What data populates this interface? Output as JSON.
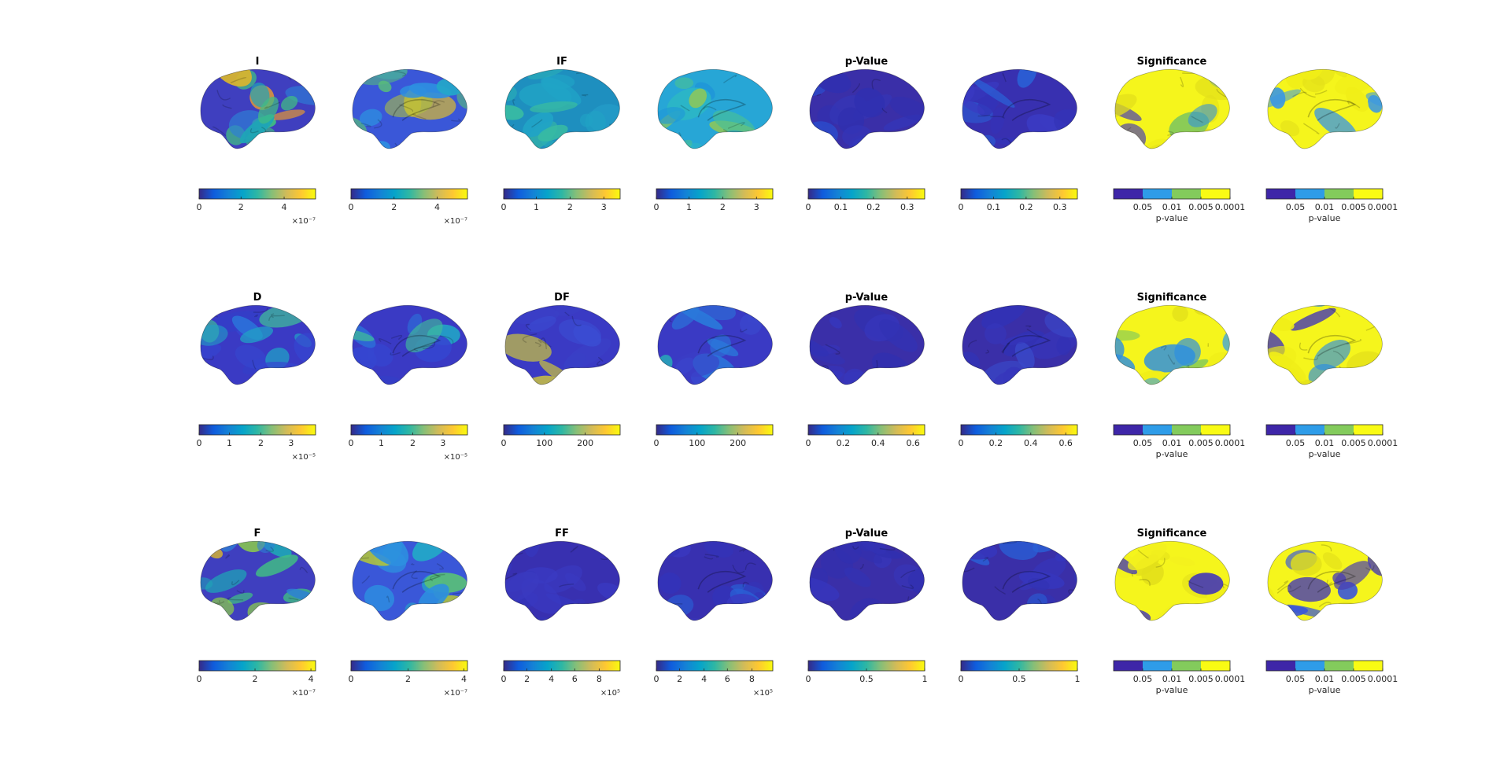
{
  "rows": [
    {
      "titles": [
        "I",
        "IF",
        "p-Value",
        "Significance"
      ],
      "panels": [
        {
          "palette": [
            "#3f3fbf",
            "#2d7fd6",
            "#1ea6b6",
            "#40bd84",
            "#8ccd4a",
            "#d8b52f",
            "#e89a30"
          ],
          "colorbar": {
            "type": "continuous",
            "ticks": [
              {
                "label": "0",
                "frac": 0.0
              },
              {
                "label": "2",
                "frac": 0.36
              },
              {
                "label": "4",
                "frac": 0.73
              }
            ],
            "exponent": "×10⁻⁷"
          }
        },
        {
          "palette": [
            "#3a57d8",
            "#2d8fe0",
            "#23a8c8",
            "#58bd7a",
            "#b0c33c",
            "#d5b936"
          ],
          "colorbar": {
            "type": "continuous",
            "ticks": [
              {
                "label": "0",
                "frac": 0.0
              },
              {
                "label": "2",
                "frac": 0.37
              },
              {
                "label": "4",
                "frac": 0.74
              }
            ],
            "exponent": "×10⁻⁷"
          }
        },
        {
          "palette": [
            "#1e8fbf",
            "#20a4c6",
            "#2ab0b6",
            "#38bba2",
            "#26a0cc"
          ],
          "colorbar": {
            "type": "continuous",
            "ticks": [
              {
                "label": "0",
                "frac": 0.0
              },
              {
                "label": "1",
                "frac": 0.28
              },
              {
                "label": "2",
                "frac": 0.57
              },
              {
                "label": "3",
                "frac": 0.86
              }
            ],
            "exponent": ""
          }
        },
        {
          "palette": [
            "#27a6d6",
            "#2db7c4",
            "#48bf98",
            "#8cc75c",
            "#1f97d8"
          ],
          "colorbar": {
            "type": "continuous",
            "ticks": [
              {
                "label": "0",
                "frac": 0.0
              },
              {
                "label": "1",
                "frac": 0.28
              },
              {
                "label": "2",
                "frac": 0.57
              },
              {
                "label": "3",
                "frac": 0.86
              }
            ],
            "exponent": ""
          }
        },
        {
          "palette": [
            "#3a2fa8",
            "#3030b0",
            "#3b3bc0",
            "#2a4fd0",
            "#3436b8"
          ],
          "colorbar": {
            "type": "continuous",
            "ticks": [
              {
                "label": "0",
                "frac": 0.0
              },
              {
                "label": "0.1",
                "frac": 0.28
              },
              {
                "label": "0.2",
                "frac": 0.56
              },
              {
                "label": "0.3",
                "frac": 0.85
              }
            ],
            "exponent": ""
          }
        },
        {
          "palette": [
            "#3830b0",
            "#3333b8",
            "#3a3ac2",
            "#2a60d6"
          ],
          "colorbar": {
            "type": "continuous",
            "ticks": [
              {
                "label": "0",
                "frac": 0.0
              },
              {
                "label": "0.1",
                "frac": 0.28
              },
              {
                "label": "0.2",
                "frac": 0.56
              },
              {
                "label": "0.3",
                "frac": 0.85
              }
            ],
            "exponent": ""
          }
        },
        {
          "palette": [
            "#f5f51c",
            "#f0ee18",
            "#e3e01a",
            "#2e8fe0",
            "#4a3fb0",
            "#84c95a"
          ],
          "colorbar": {
            "type": "discrete",
            "ticks": [
              {
                "label": "0.05",
                "frac": 0.25
              },
              {
                "label": "0.01",
                "frac": 0.5
              },
              {
                "label": "0.005",
                "frac": 0.75
              },
              {
                "label": "0.0001",
                "frac": 1.0
              }
            ],
            "label": "p-value"
          }
        },
        {
          "palette": [
            "#f5f51c",
            "#f0ee18",
            "#e3e01a",
            "#3a97e4"
          ],
          "colorbar": {
            "type": "discrete",
            "ticks": [
              {
                "label": "0.05",
                "frac": 0.25
              },
              {
                "label": "0.01",
                "frac": 0.5
              },
              {
                "label": "0.005",
                "frac": 0.75
              },
              {
                "label": "0.0001",
                "frac": 1.0
              }
            ],
            "label": "p-value"
          }
        }
      ]
    },
    {
      "titles": [
        "D",
        "DF",
        "p-Value",
        "Significance"
      ],
      "panels": [
        {
          "palette": [
            "#3a3ac4",
            "#3546d0",
            "#2c6fd8",
            "#22a0c6",
            "#3fbb9a",
            "#3340c8"
          ],
          "colorbar": {
            "type": "continuous",
            "ticks": [
              {
                "label": "0",
                "frac": 0.0
              },
              {
                "label": "1",
                "frac": 0.26
              },
              {
                "label": "2",
                "frac": 0.53
              },
              {
                "label": "3",
                "frac": 0.79
              }
            ],
            "exponent": "×10⁻⁵"
          }
        },
        {
          "palette": [
            "#3a3ac4",
            "#3546d0",
            "#2c6fd8",
            "#22a0c6",
            "#3fbb9a",
            "#3340c8"
          ],
          "colorbar": {
            "type": "continuous",
            "ticks": [
              {
                "label": "0",
                "frac": 0.0
              },
              {
                "label": "1",
                "frac": 0.26
              },
              {
                "label": "2",
                "frac": 0.53
              },
              {
                "label": "3",
                "frac": 0.79
              }
            ],
            "exponent": "×10⁻⁵"
          }
        },
        {
          "palette": [
            "#3a3ac4",
            "#3a4cd2",
            "#2a78da",
            "#28a8b8",
            "#c8c040",
            "#3a3fc6"
          ],
          "colorbar": {
            "type": "continuous",
            "ticks": [
              {
                "label": "0",
                "frac": 0.0
              },
              {
                "label": "100",
                "frac": 0.35
              },
              {
                "label": "200",
                "frac": 0.7
              }
            ],
            "exponent": ""
          }
        },
        {
          "palette": [
            "#3a3ac4",
            "#3a4cd2",
            "#2a78da",
            "#28a8b8",
            "#3a3fc6"
          ],
          "colorbar": {
            "type": "continuous",
            "ticks": [
              {
                "label": "0",
                "frac": 0.0
              },
              {
                "label": "100",
                "frac": 0.35
              },
              {
                "label": "200",
                "frac": 0.7
              }
            ],
            "exponent": ""
          }
        },
        {
          "palette": [
            "#3a2fa8",
            "#3232b4",
            "#3636bc",
            "#3030b0"
          ],
          "colorbar": {
            "type": "continuous",
            "ticks": [
              {
                "label": "0",
                "frac": 0.0
              },
              {
                "label": "0.2",
                "frac": 0.3
              },
              {
                "label": "0.4",
                "frac": 0.6
              },
              {
                "label": "0.6",
                "frac": 0.9
              }
            ],
            "exponent": ""
          }
        },
        {
          "palette": [
            "#3a2fa8",
            "#3232b4",
            "#3636bc",
            "#3a48c8"
          ],
          "colorbar": {
            "type": "continuous",
            "ticks": [
              {
                "label": "0",
                "frac": 0.0
              },
              {
                "label": "0.2",
                "frac": 0.3
              },
              {
                "label": "0.4",
                "frac": 0.6
              },
              {
                "label": "0.6",
                "frac": 0.9
              }
            ],
            "exponent": ""
          }
        },
        {
          "palette": [
            "#f5f51c",
            "#f0ee18",
            "#2e8fe0",
            "#84c95a",
            "#e3e01a",
            "#3aa2e2"
          ],
          "colorbar": {
            "type": "discrete",
            "ticks": [
              {
                "label": "0.05",
                "frac": 0.25
              },
              {
                "label": "0.01",
                "frac": 0.5
              },
              {
                "label": "0.005",
                "frac": 0.75
              },
              {
                "label": "0.0001",
                "frac": 1.0
              }
            ],
            "label": "p-value"
          }
        },
        {
          "palette": [
            "#f5f51c",
            "#f0ee18",
            "#2e8fe0",
            "#4a3fb0",
            "#84c95a",
            "#e3e01a"
          ],
          "colorbar": {
            "type": "discrete",
            "ticks": [
              {
                "label": "0.05",
                "frac": 0.25
              },
              {
                "label": "0.01",
                "frac": 0.5
              },
              {
                "label": "0.005",
                "frac": 0.75
              },
              {
                "label": "0.0001",
                "frac": 1.0
              }
            ],
            "label": "p-value"
          }
        }
      ]
    },
    {
      "titles": [
        "F",
        "FF",
        "p-Value",
        "Significance"
      ],
      "panels": [
        {
          "palette": [
            "#3f3fbf",
            "#2d7fd6",
            "#1ea6b6",
            "#40bd84",
            "#8ccd4a",
            "#d8b52f"
          ],
          "colorbar": {
            "type": "continuous",
            "ticks": [
              {
                "label": "0",
                "frac": 0.0
              },
              {
                "label": "2",
                "frac": 0.48
              },
              {
                "label": "4",
                "frac": 0.96
              }
            ],
            "exponent": "×10⁻⁷"
          }
        },
        {
          "palette": [
            "#3a57d8",
            "#2d8fe0",
            "#23a8c8",
            "#58bd7a",
            "#b0c33c"
          ],
          "colorbar": {
            "type": "continuous",
            "ticks": [
              {
                "label": "0",
                "frac": 0.0
              },
              {
                "label": "2",
                "frac": 0.49
              },
              {
                "label": "4",
                "frac": 0.97
              }
            ],
            "exponent": "×10⁻⁷"
          }
        },
        {
          "palette": [
            "#3830b0",
            "#3333b8",
            "#3a3ac2",
            "#3636bc"
          ],
          "colorbar": {
            "type": "continuous",
            "ticks": [
              {
                "label": "0",
                "frac": 0.0
              },
              {
                "label": "2",
                "frac": 0.2
              },
              {
                "label": "4",
                "frac": 0.41
              },
              {
                "label": "6",
                "frac": 0.61
              },
              {
                "label": "8",
                "frac": 0.82
              }
            ],
            "exponent": "×10⁵"
          }
        },
        {
          "palette": [
            "#3830b0",
            "#3333b8",
            "#3a3ac2",
            "#2a60d6"
          ],
          "colorbar": {
            "type": "continuous",
            "ticks": [
              {
                "label": "0",
                "frac": 0.0
              },
              {
                "label": "2",
                "frac": 0.2
              },
              {
                "label": "4",
                "frac": 0.41
              },
              {
                "label": "6",
                "frac": 0.61
              },
              {
                "label": "8",
                "frac": 0.82
              }
            ],
            "exponent": "×10⁵"
          }
        },
        {
          "palette": [
            "#3a2fa8",
            "#3232b4",
            "#3636bc",
            "#3030b0"
          ],
          "colorbar": {
            "type": "continuous",
            "ticks": [
              {
                "label": "0",
                "frac": 0.0
              },
              {
                "label": "0.5",
                "frac": 0.5
              },
              {
                "label": "1",
                "frac": 1.0
              }
            ],
            "exponent": ""
          }
        },
        {
          "palette": [
            "#3a2fa8",
            "#3232b4",
            "#3636bc",
            "#2a5ed4"
          ],
          "colorbar": {
            "type": "continuous",
            "ticks": [
              {
                "label": "0",
                "frac": 0.0
              },
              {
                "label": "0.5",
                "frac": 0.5
              },
              {
                "label": "1",
                "frac": 1.0
              }
            ],
            "exponent": ""
          }
        },
        {
          "palette": [
            "#f5f51c",
            "#f0ee18",
            "#e3e01a",
            "#f2f01e",
            "#4a3fb0"
          ],
          "colorbar": {
            "type": "discrete",
            "ticks": [
              {
                "label": "0.05",
                "frac": 0.25
              },
              {
                "label": "0.01",
                "frac": 0.5
              },
              {
                "label": "0.005",
                "frac": 0.75
              },
              {
                "label": "0.0001",
                "frac": 1.0
              }
            ],
            "label": "p-value"
          }
        },
        {
          "palette": [
            "#f5f51c",
            "#f0ee18",
            "#e3e01a",
            "#3a57d8",
            "#4a3fb0"
          ],
          "colorbar": {
            "type": "discrete",
            "ticks": [
              {
                "label": "0.05",
                "frac": 0.25
              },
              {
                "label": "0.01",
                "frac": 0.5
              },
              {
                "label": "0.005",
                "frac": 0.75
              },
              {
                "label": "0.0001",
                "frac": 1.0
              }
            ],
            "label": "p-value"
          }
        }
      ]
    }
  ],
  "parula": [
    "#352a87",
    "#0f5cdd",
    "#1481d6",
    "#06a4ca",
    "#2eb7a4",
    "#87bf77",
    "#d1bb59",
    "#fec832",
    "#f9fb0e"
  ],
  "discrete_colors": [
    "#3e26a8",
    "#2e9ce8",
    "#83cb5c",
    "#f9fb14"
  ]
}
